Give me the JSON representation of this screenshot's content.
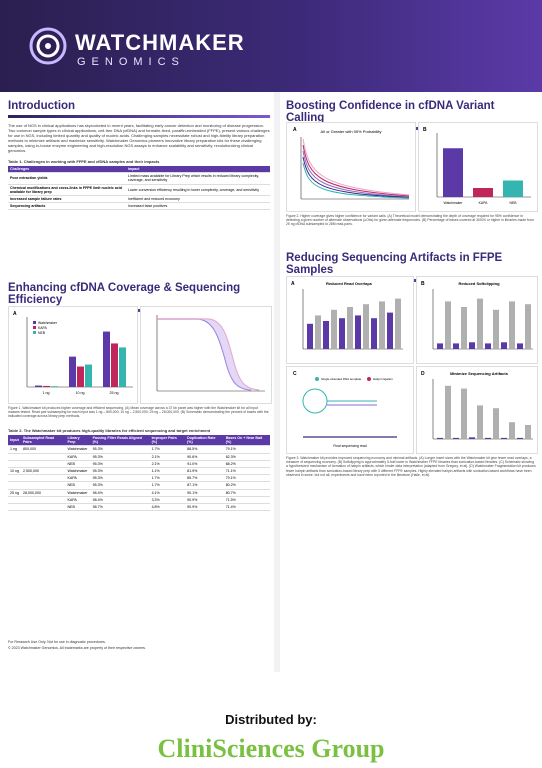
{
  "brand": {
    "name": "WATCHMAKER",
    "sub": "GENOMICS"
  },
  "left": {
    "intro_title": "Introduction",
    "intro_text": "The use of NGS in clinical applications has skyrocketed in recent years, facilitating early cancer detection and monitoring of disease progression. Two common sample types in clinical applications, cell-free DNA (cfDNA) and formalin-fixed, paraffin-embedded (FFPE), present various challenges for use in NGS, including limited quantity and quality of nucleic acids. Challenging samples necessitate robust and high-fidelity library preparation methods to minimize artifacts and maximize sensitivity. Watchmaker Genomics pioneers innovative library preparation kits for these challenging samples, using in-house enzyme engineering and high-resolution NGS assays to enhance scalability and sensitivity, revolutionizing clinical genomics.",
    "table1_title": "Table 1. Challenges in working with FFPE and cfDNA samples and their impacts",
    "table1_head": [
      "Challenges",
      "Impact"
    ],
    "table1_rows": [
      [
        "Poor extraction yields",
        "Limited mass available for Library Prep which results in reduced library complexity, coverage, and sensitivity"
      ],
      [
        "Chemical modifications and cross-links in FFPE limit nucleic acid available for library prep",
        "Lower conversion efficiency resulting in lower complexity, coverage, and sensitivity"
      ],
      [
        "Increased sample failure rates",
        "Inefficient and reduced economy"
      ],
      [
        "Sequencing artifacts",
        "Increased false positives"
      ]
    ],
    "enh_title": "Enhancing cfDNA Coverage & Sequencing Efficiency",
    "fig1_caption": "Figure 1. Watchmaker kit produces higher coverage and efficient sequencing. (A) Mean coverage across a 37 kb panel was higher with the Watchmaker kit for all input masses tested. Read pair subsampling for each input was 1 ng – 800,000; 10 ng – 2,500,000; 25 ng – 28,000,000. (B) Schematic demonstrating the percent of bases with the indicated coverage across library prep methods.",
    "table2_title": "Table 2. The Watchmaker kit produces high-quality libraries for efficient sequencing and target enrichment",
    "table2_head": [
      "Input",
      "Subsampled Read Pairs",
      "Library Prep",
      "Passing Filter Reads Aligned (%)",
      "Improper Pairs (%)",
      "Duplication Rate (%)",
      "Bases On + Near Bait (%)"
    ],
    "table2_rows": [
      [
        "1 ng",
        "800,000",
        "Watchmaker",
        "95.3%",
        "1.7%",
        "88.5%",
        "79.1%"
      ],
      [
        "",
        "",
        "KAPA",
        "95.3%",
        "2.1%",
        "90.6%",
        "62.3%"
      ],
      [
        "",
        "",
        "NEB",
        "95.3%",
        "2.1%",
        "91.0%",
        "68.2%"
      ],
      [
        "10 ng",
        "2,500,000",
        "Watchmaker",
        "95.3%",
        "1.1%",
        "81.9%",
        "71.1%"
      ],
      [
        "",
        "",
        "KAPA",
        "95.3%",
        "1.7%",
        "85.7%",
        "79.1%"
      ],
      [
        "",
        "",
        "NEB",
        "95.3%",
        "1.7%",
        "87.1%",
        "80.2%"
      ],
      [
        "25 ng",
        "28,000,000",
        "Watchmaker",
        "98.4%",
        "4.1%",
        "90.1%",
        "80.7%"
      ],
      [
        "",
        "",
        "KAPA",
        "98.4%",
        "3.3%",
        "90.9%",
        "71.5%"
      ],
      [
        "",
        "",
        "NEB",
        "98.7%",
        "4.8%",
        "90.9%",
        "71.4%"
      ]
    ],
    "footnote1": "For Research Use Only. Not for use in diagnostic procedures.",
    "footnote2": "© 2023 Watchmaker Genomics. All trademarks are property of their respective owners."
  },
  "right": {
    "boost_title": "Boosting Confidence in cfDNA Variant Calling",
    "fig2_caption": "Figure 2. Higher coverage gives higher confidence for variant calls. (A) Theoretical model demonstrating the depth of coverage required for 95% confidence in detecting a given number of alternate observations (≥Obs) for given alternate frequencies. (B) Percentage of bases covered at 3000X or higher in libraries made from 25 ng cfDNA subsampled to 28M read-pairs.",
    "reduce_title": "Reducing Sequencing Artifacts in FFPE Samples",
    "fig3_caption": "Figure 3. Watchmaker kit provides improved sequencing economy and minimal artifacts. (A) Longer insert sizes with the Watchmaker kit give fewer read overlaps, a measure of sequencing economy. (B) Softclipping is approximately 5-fold lower in Watchmaker FFPE libraries than sonication-based libraries. (C) Schematic showing a hypothesized mechanism of formation of hairpin artifacts, which hinder data interpretation (adapted from Gregory, et al). (D) Watchmaker Fragmentation kit produces fewer hairpin artifacts than sonication-based library prep with 3 different FFPE samples. Highly elevated hairpin artifacts with sonication-based workflows have been observed in some, but not all, experiments and have been reported in the literature (Haile, et al).",
    "panel_labels": [
      "A",
      "B",
      "C",
      "D"
    ],
    "fig3_titles": [
      "Reduced Read Overlaps",
      "Reduced Softclipping",
      "",
      "Minimize Sequencing Artifacts"
    ],
    "fig2a_title": "All or Greater with 95% Probability",
    "hairpin_labels": [
      "Single-stranded DNA template",
      "Hairpin ligation",
      "Final sequencing read"
    ]
  },
  "footer": {
    "distributed": "Distributed by:",
    "company": "CliniSciences Group"
  },
  "colors": {
    "purple": "#5b3aa8",
    "dark": "#2a1f4f",
    "green": "#7ac142",
    "red": "#c0265b",
    "teal": "#35b5b0"
  },
  "chart_data": [
    {
      "type": "bar",
      "panel": "Fig1A",
      "categories": [
        "1 ng",
        "10 ng",
        "25 ng"
      ],
      "series": [
        {
          "name": "Watchmaker",
          "values": [
            110,
            2300,
            4200
          ]
        },
        {
          "name": "KAPA",
          "values": [
            80,
            1550,
            3300
          ]
        },
        {
          "name": "NEB",
          "values": [
            60,
            1700,
            3000
          ]
        }
      ],
      "ylabel": "Mean Coverage (X)",
      "ylim": [
        0,
        5000
      ]
    },
    {
      "type": "bar",
      "panel": "Fig2B",
      "categories": [
        "Watchmaker",
        "KAPA",
        "NEB"
      ],
      "values": [
        65,
        12,
        22
      ],
      "ylabel": "Bases Covered ≥3000X (%)",
      "ylim": [
        0,
        80
      ]
    }
  ]
}
